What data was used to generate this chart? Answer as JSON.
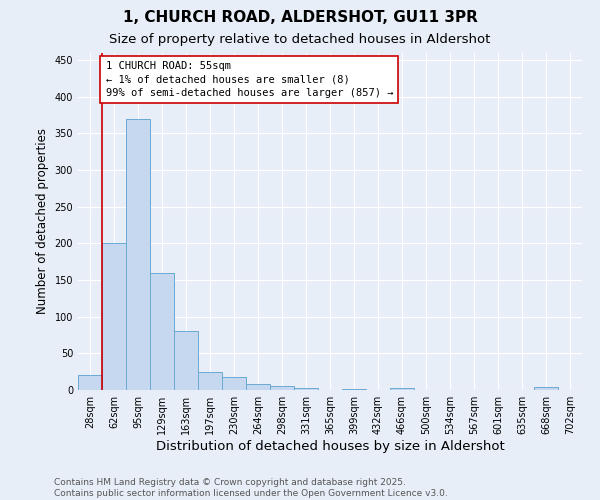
{
  "title": "1, CHURCH ROAD, ALDERSHOT, GU11 3PR",
  "subtitle": "Size of property relative to detached houses in Aldershot",
  "xlabel": "Distribution of detached houses by size in Aldershot",
  "ylabel": "Number of detached properties",
  "bar_values": [
    20,
    200,
    370,
    160,
    80,
    25,
    18,
    8,
    6,
    3,
    0,
    2,
    0,
    3,
    0,
    0,
    0,
    0,
    0,
    4,
    0
  ],
  "bar_labels": [
    "28sqm",
    "62sqm",
    "95sqm",
    "129sqm",
    "163sqm",
    "197sqm",
    "230sqm",
    "264sqm",
    "298sqm",
    "331sqm",
    "365sqm",
    "399sqm",
    "432sqm",
    "466sqm",
    "500sqm",
    "534sqm",
    "567sqm",
    "601sqm",
    "635sqm",
    "668sqm",
    "702sqm"
  ],
  "bar_color": "#c5d8f0",
  "bar_edge_color": "#6aaad4",
  "annotation_line1": "1 CHURCH ROAD: 55sqm",
  "annotation_line2": "← 1% of detached houses are smaller (8)",
  "annotation_line3": "99% of semi-detached houses are larger (857) →",
  "annotation_box_color": "#ffffff",
  "annotation_box_edge": "#cc0000",
  "vline_color": "#cc0000",
  "vline_x_index": 1,
  "ylim": [
    0,
    460
  ],
  "yticks": [
    0,
    50,
    100,
    150,
    200,
    250,
    300,
    350,
    400,
    450
  ],
  "bg_color": "#e8eef8",
  "plot_bg_color": "#e8eef8",
  "footer_text": "Contains HM Land Registry data © Crown copyright and database right 2025.\nContains public sector information licensed under the Open Government Licence v3.0.",
  "title_fontsize": 11,
  "subtitle_fontsize": 9.5,
  "xlabel_fontsize": 9.5,
  "ylabel_fontsize": 8.5,
  "tick_fontsize": 7,
  "annotation_fontsize": 7.5,
  "footer_fontsize": 6.5
}
